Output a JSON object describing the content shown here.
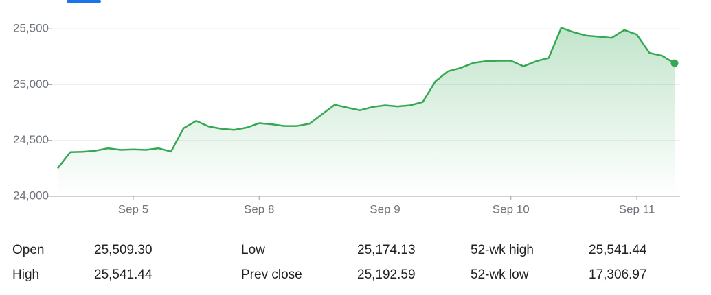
{
  "chart_data": {
    "type": "line",
    "color": "#34a853",
    "grid": true,
    "categories": [
      null,
      null,
      null,
      null,
      null,
      null,
      "Sep 5",
      null,
      null,
      null,
      null,
      null,
      null,
      null,
      null,
      null,
      "Sep 8",
      null,
      null,
      null,
      null,
      null,
      null,
      null,
      null,
      null,
      "Sep 9",
      null,
      null,
      null,
      null,
      null,
      null,
      null,
      null,
      null,
      "Sep 10",
      null,
      null,
      null,
      null,
      null,
      null,
      null,
      null,
      null,
      "Sep 11",
      null,
      null,
      null
    ],
    "values": [
      24250,
      24395,
      24398,
      24408,
      24430,
      24415,
      24420,
      24415,
      24430,
      24400,
      24610,
      24675,
      24625,
      24605,
      24595,
      24615,
      24655,
      24645,
      24630,
      24630,
      24650,
      24735,
      24820,
      24795,
      24770,
      24800,
      24815,
      24805,
      24815,
      24845,
      25030,
      25120,
      25150,
      25195,
      25210,
      25215,
      25215,
      25165,
      25210,
      25240,
      25510,
      25470,
      25440,
      25430,
      25420,
      25490,
      25450,
      25285,
      25260,
      25192.59
    ],
    "ylim": [
      24000,
      25750
    ],
    "yticks": [
      {
        "value": 24000,
        "label": "24,000"
      },
      {
        "value": 24500,
        "label": "24,500"
      },
      {
        "value": 25000,
        "label": "25,000"
      },
      {
        "value": 25500,
        "label": "25,500"
      }
    ]
  },
  "stats": [
    [
      "Open",
      "25,509.30",
      "Low",
      "25,174.13",
      "52-wk high",
      "25,541.44"
    ],
    [
      "High",
      "25,541.44",
      "Prev close",
      "25,192.59",
      "52-wk low",
      "17,306.97"
    ]
  ]
}
